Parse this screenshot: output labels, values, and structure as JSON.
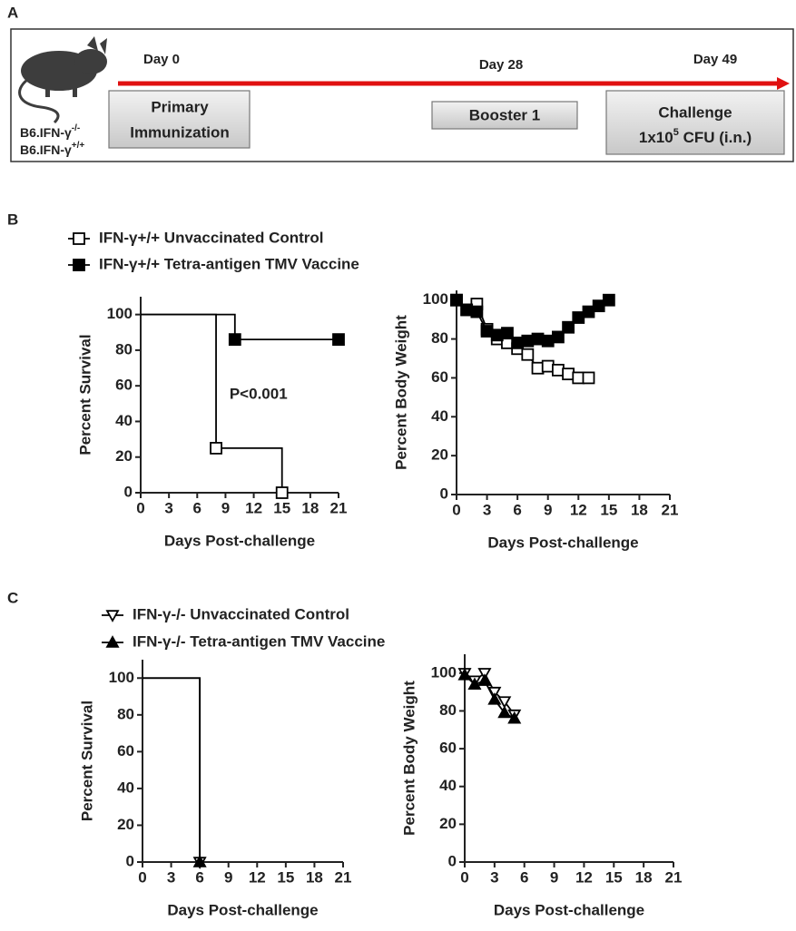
{
  "panel_labels": [
    "A",
    "B",
    "C"
  ],
  "panel_a": {
    "strains": [
      {
        "text": "B6.IFN-γ",
        "sup": "-/-"
      },
      {
        "text": "B6.IFN-γ",
        "sup": "+/+"
      }
    ],
    "days": [
      "Day 0",
      "Day 28",
      "Day 49"
    ],
    "primary": [
      "Primary",
      "Immunization"
    ],
    "booster": "Booster 1",
    "challenge": {
      "line1": "Challenge",
      "line2": [
        "1x10",
        "5",
        " CFU (i.n.)"
      ]
    }
  },
  "chart_data": [
    {
      "type": "step",
      "xlabel": "Days Post-challenge",
      "ylabel": "Percent Survival",
      "annotation": "P<0.001",
      "xlim": [
        0,
        21
      ],
      "xticks": [
        0,
        3,
        6,
        9,
        12,
        15,
        18,
        21
      ],
      "ylim": [
        0,
        110
      ],
      "yticks": [
        0,
        20,
        40,
        60,
        80,
        100
      ],
      "series": [
        {
          "name": "IFN-γ+/+ Unvaccinated Control",
          "marker": "square-open",
          "color": "#000000",
          "x": [
            0,
            8,
            15
          ],
          "values": [
            100,
            25,
            0
          ]
        },
        {
          "name": "IFN-γ+/+ Tetra-antigen TMV Vaccine",
          "marker": "square-filled",
          "color": "#000000",
          "x": [
            0,
            10,
            21
          ],
          "values": [
            100,
            86,
            86
          ]
        }
      ]
    },
    {
      "type": "line",
      "xlabel": "Days Post-challenge",
      "ylabel": "Percent Body Weight",
      "xlim": [
        0,
        21
      ],
      "xticks": [
        0,
        3,
        6,
        9,
        12,
        15,
        18,
        21
      ],
      "ylim": [
        0,
        105
      ],
      "yticks": [
        0,
        20,
        40,
        60,
        80,
        100
      ],
      "series": [
        {
          "marker": "square-open",
          "color": "#000000",
          "x": [
            0,
            1,
            2,
            3,
            4,
            5,
            6,
            7,
            8,
            9,
            10,
            11,
            12,
            13
          ],
          "values": [
            100,
            95,
            98,
            85,
            80,
            78,
            75,
            72,
            65,
            66,
            64,
            62,
            60,
            60
          ]
        },
        {
          "marker": "square-filled",
          "color": "#000000",
          "x": [
            0,
            1,
            2,
            3,
            4,
            5,
            6,
            7,
            8,
            9,
            10,
            11,
            12,
            13,
            14,
            15
          ],
          "values": [
            100,
            95,
            94,
            84,
            82,
            83,
            78,
            79,
            80,
            79,
            81,
            86,
            91,
            94,
            97,
            100
          ]
        }
      ]
    },
    {
      "type": "step",
      "xlabel": "Days Post-challenge",
      "ylabel": "Percent Survival",
      "xlim": [
        0,
        21
      ],
      "xticks": [
        0,
        3,
        6,
        9,
        12,
        15,
        18,
        21
      ],
      "ylim": [
        0,
        110
      ],
      "yticks": [
        0,
        20,
        40,
        60,
        80,
        100
      ],
      "series": [
        {
          "name": "IFN-γ-/- Unvaccinated Control",
          "marker": "triangle-down-open",
          "color": "#000000",
          "x": [
            0,
            6
          ],
          "values": [
            100,
            0
          ]
        },
        {
          "name": "IFN-γ-/- Tetra-antigen TMV Vaccine",
          "marker": "triangle-up-filled",
          "color": "#000000",
          "x": [
            0,
            6
          ],
          "values": [
            100,
            0
          ]
        }
      ]
    },
    {
      "type": "line",
      "xlabel": "Days Post-challenge",
      "ylabel": "Percent Body Weight",
      "xlim": [
        0,
        21
      ],
      "xticks": [
        0,
        3,
        6,
        9,
        12,
        15,
        18,
        21
      ],
      "ylim": [
        0,
        110
      ],
      "yticks": [
        0,
        20,
        40,
        60,
        80,
        100
      ],
      "series": [
        {
          "marker": "triangle-down-open",
          "color": "#000000",
          "x": [
            0,
            1,
            2,
            3,
            4,
            5
          ],
          "values": [
            100,
            96,
            100,
            90,
            85,
            78
          ]
        },
        {
          "marker": "triangle-up-filled",
          "color": "#000000",
          "x": [
            0,
            1,
            2,
            3,
            4,
            5
          ],
          "values": [
            99,
            94,
            96,
            86,
            79,
            76
          ]
        }
      ]
    }
  ]
}
